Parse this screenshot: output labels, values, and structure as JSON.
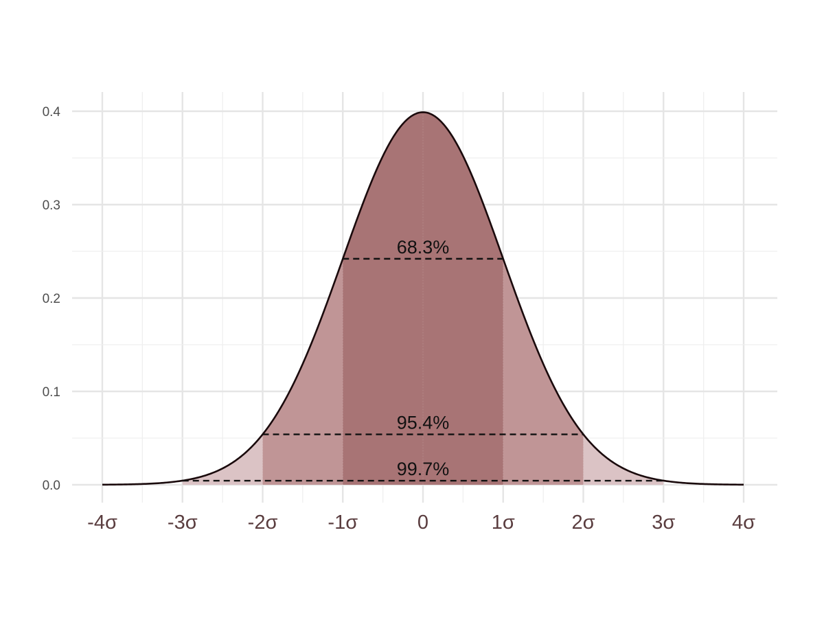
{
  "chart_data": {
    "type": "area",
    "title": "",
    "xlabel": "",
    "ylabel": "",
    "xlim": [
      -4,
      4
    ],
    "ylim": [
      0,
      0.4
    ],
    "grid": true,
    "x_ticks": [
      -4,
      -3,
      -2,
      -1,
      0,
      1,
      2,
      3,
      4
    ],
    "x_tick_labels": [
      "-4σ",
      "-3σ",
      "-2σ",
      "-1σ",
      "0",
      "1σ",
      "2σ",
      "3σ",
      "4σ"
    ],
    "y_ticks": [
      0,
      0.1,
      0.2,
      0.3,
      0.4
    ],
    "y_tick_labels": [
      "0.0",
      "0.1",
      "0.2",
      "0.3",
      "0.4"
    ],
    "curve": {
      "distribution": "standard normal density",
      "mean": 0,
      "sd": 1,
      "color": "#1a0a0c"
    },
    "bands": [
      {
        "from": -3,
        "to": 3,
        "color": "#dbc3c5"
      },
      {
        "from": -2,
        "to": 2,
        "color": "#c09596"
      },
      {
        "from": -1,
        "to": 1,
        "color": "#a87475"
      }
    ],
    "annotations": [
      {
        "text": "68.3%",
        "from": -1,
        "to": 1,
        "y": 0.242
      },
      {
        "text": "95.4%",
        "from": -2,
        "to": 2,
        "y": 0.054
      },
      {
        "text": "99.7%",
        "from": -3,
        "to": 3,
        "y": 0.0044
      }
    ]
  }
}
